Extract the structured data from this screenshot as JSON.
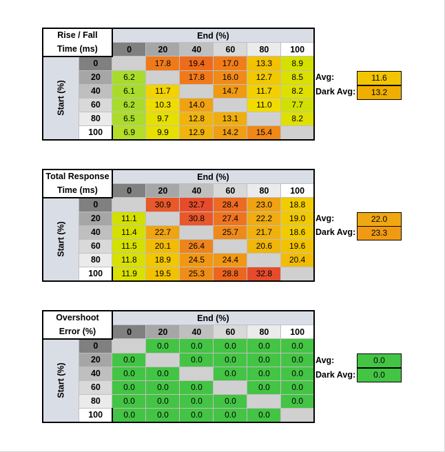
{
  "tables": [
    {
      "title_line1": "Rise / Fall",
      "title_line2": "Time (ms)",
      "avg": "11.6",
      "avg_color": "#f2c500",
      "dark_avg": "13.2",
      "dark_avg_color": "#f0ae00",
      "rows": [
        [
          "",
          "17.8",
          "19.4",
          "17.0",
          "13.3",
          "8.9"
        ],
        [
          "6.2",
          "",
          "17.8",
          "16.0",
          "12.7",
          "8.5"
        ],
        [
          "6.1",
          "11.7",
          "",
          "14.7",
          "11.7",
          "8.2"
        ],
        [
          "6.2",
          "10.3",
          "14.0",
          "",
          "11.0",
          "7.7"
        ],
        [
          "6.5",
          "9.7",
          "12.8",
          "13.1",
          "",
          "8.2"
        ],
        [
          "6.9",
          "9.9",
          "12.9",
          "14.2",
          "15.4",
          ""
        ]
      ],
      "colors": [
        [
          "",
          "#f07a1a",
          "#ee6a1c",
          "#f07d1a",
          "#f2c100",
          "#d6e000"
        ],
        [
          "#a8dc2a",
          "",
          "#f07a1a",
          "#f08a18",
          "#f2c800",
          "#dce000"
        ],
        [
          "#a8dc2a",
          "#f2d200",
          "",
          "#f09a14",
          "#f2d000",
          "#dfe000"
        ],
        [
          "#a8dc2a",
          "#f0dc00",
          "#f0a212",
          "",
          "#f2dc00",
          "#d2e000"
        ],
        [
          "#acdc2a",
          "#e6e000",
          "#f0b40c",
          "#f0ae0e",
          "",
          "#dfe000"
        ],
        [
          "#b4de28",
          "#e6e000",
          "#f0b40c",
          "#f09e14",
          "#f08818",
          ""
        ]
      ]
    },
    {
      "title_line1": "Total Response",
      "title_line2": "Time (ms)",
      "avg": "22.0",
      "avg_color": "#f0a812",
      "dark_avg": "23.3",
      "dark_avg_color": "#f09a14",
      "rows": [
        [
          "",
          "30.9",
          "32.7",
          "28.4",
          "23.0",
          "18.8"
        ],
        [
          "11.1",
          "",
          "30.8",
          "27.4",
          "22.2",
          "19.0"
        ],
        [
          "11.4",
          "22.7",
          "",
          "25.7",
          "21.7",
          "18.6"
        ],
        [
          "11.5",
          "20.1",
          "26.4",
          "",
          "20.6",
          "19.6"
        ],
        [
          "11.8",
          "18.9",
          "24.5",
          "24.4",
          "",
          "20.4"
        ],
        [
          "11.9",
          "19.5",
          "25.3",
          "28.8",
          "32.8",
          ""
        ]
      ],
      "colors": [
        [
          "",
          "#e8582a",
          "#e64c2c",
          "#ec6a22",
          "#f0a212",
          "#f2cc00"
        ],
        [
          "#d2e000",
          "",
          "#e8582a",
          "#ee7420",
          "#f0ac10",
          "#f2c800"
        ],
        [
          "#d6e000",
          "#f0a412",
          "",
          "#ee8a1a",
          "#f0b00e",
          "#f2cc00"
        ],
        [
          "#d6e000",
          "#f2bc06",
          "#ee841c",
          "",
          "#f0b60c",
          "#f2c200"
        ],
        [
          "#d8e000",
          "#f2c600",
          "#f09814",
          "#f09814",
          "",
          "#f2bc06"
        ],
        [
          "#dae000",
          "#f2c200",
          "#ee8e18",
          "#ec6620",
          "#e64c2c",
          ""
        ]
      ]
    },
    {
      "title_line1": "Overshoot",
      "title_line2": "Error (%)",
      "avg": "0.0",
      "avg_color": "#44c444",
      "dark_avg": "0.0",
      "dark_avg_color": "#44c444",
      "rows": [
        [
          "",
          "0.0",
          "0.0",
          "0.0",
          "0.0",
          "0.0"
        ],
        [
          "0.0",
          "",
          "0.0",
          "0.0",
          "0.0",
          "0.0"
        ],
        [
          "0.0",
          "0.0",
          "",
          "0.0",
          "0.0",
          "0.0"
        ],
        [
          "0.0",
          "0.0",
          "0.0",
          "",
          "0.0",
          "0.0"
        ],
        [
          "0.0",
          "0.0",
          "0.0",
          "0.0",
          "",
          "0.0"
        ],
        [
          "0.0",
          "0.0",
          "0.0",
          "0.0",
          "0.0",
          ""
        ]
      ],
      "colors": "green"
    }
  ],
  "labels": {
    "end": "End (%)",
    "start": "Start (%)",
    "avg": "Avg:",
    "dark_avg": "Dark Avg:",
    "levels": [
      "0",
      "20",
      "40",
      "60",
      "80",
      "100"
    ]
  },
  "chart_data": [
    {
      "type": "heatmap",
      "title": "Rise / Fall Time (ms)",
      "xlabel": "End (%)",
      "ylabel": "Start (%)",
      "x": [
        "0",
        "20",
        "40",
        "60",
        "80",
        "100"
      ],
      "y": [
        "0",
        "20",
        "40",
        "60",
        "80",
        "100"
      ],
      "values": [
        [
          null,
          17.8,
          19.4,
          17.0,
          13.3,
          8.9
        ],
        [
          6.2,
          null,
          17.8,
          16.0,
          12.7,
          8.5
        ],
        [
          6.1,
          11.7,
          null,
          14.7,
          11.7,
          8.2
        ],
        [
          6.2,
          10.3,
          14.0,
          null,
          11.0,
          7.7
        ],
        [
          6.5,
          9.7,
          12.8,
          13.1,
          null,
          8.2
        ],
        [
          6.9,
          9.9,
          12.9,
          14.2,
          15.4,
          null
        ]
      ],
      "avg": 11.6,
      "dark_avg": 13.2
    },
    {
      "type": "heatmap",
      "title": "Total Response Time (ms)",
      "xlabel": "End (%)",
      "ylabel": "Start (%)",
      "x": [
        "0",
        "20",
        "40",
        "60",
        "80",
        "100"
      ],
      "y": [
        "0",
        "20",
        "40",
        "60",
        "80",
        "100"
      ],
      "values": [
        [
          null,
          30.9,
          32.7,
          28.4,
          23.0,
          18.8
        ],
        [
          11.1,
          null,
          30.8,
          27.4,
          22.2,
          19.0
        ],
        [
          11.4,
          22.7,
          null,
          25.7,
          21.7,
          18.6
        ],
        [
          11.5,
          20.1,
          26.4,
          null,
          20.6,
          19.6
        ],
        [
          11.8,
          18.9,
          24.5,
          24.4,
          null,
          20.4
        ],
        [
          11.9,
          19.5,
          25.3,
          28.8,
          32.8,
          null
        ]
      ],
      "avg": 22.0,
      "dark_avg": 23.3
    },
    {
      "type": "heatmap",
      "title": "Overshoot Error (%)",
      "xlabel": "End (%)",
      "ylabel": "Start (%)",
      "x": [
        "0",
        "20",
        "40",
        "60",
        "80",
        "100"
      ],
      "y": [
        "0",
        "20",
        "40",
        "60",
        "80",
        "100"
      ],
      "values": [
        [
          null,
          0.0,
          0.0,
          0.0,
          0.0,
          0.0
        ],
        [
          0.0,
          null,
          0.0,
          0.0,
          0.0,
          0.0
        ],
        [
          0.0,
          0.0,
          null,
          0.0,
          0.0,
          0.0
        ],
        [
          0.0,
          0.0,
          0.0,
          null,
          0.0,
          0.0
        ],
        [
          0.0,
          0.0,
          0.0,
          0.0,
          null,
          0.0
        ],
        [
          0.0,
          0.0,
          0.0,
          0.0,
          0.0,
          null
        ]
      ],
      "avg": 0.0,
      "dark_avg": 0.0
    }
  ]
}
